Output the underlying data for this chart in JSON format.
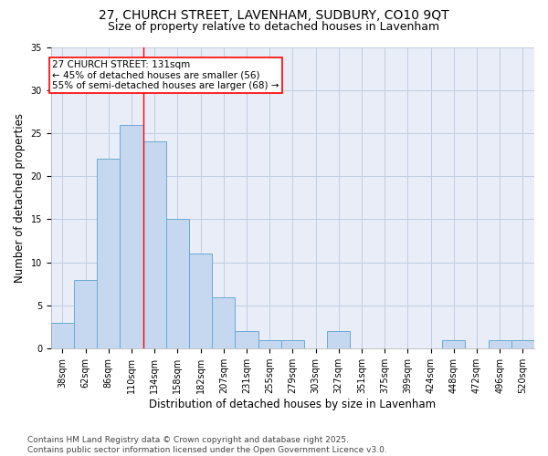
{
  "title_line1": "27, CHURCH STREET, LAVENHAM, SUDBURY, CO10 9QT",
  "title_line2": "Size of property relative to detached houses in Lavenham",
  "xlabel": "Distribution of detached houses by size in Lavenham",
  "ylabel": "Number of detached properties",
  "categories": [
    "38sqm",
    "62sqm",
    "86sqm",
    "110sqm",
    "134sqm",
    "158sqm",
    "182sqm",
    "207sqm",
    "231sqm",
    "255sqm",
    "279sqm",
    "303sqm",
    "327sqm",
    "351sqm",
    "375sqm",
    "399sqm",
    "424sqm",
    "448sqm",
    "472sqm",
    "496sqm",
    "520sqm"
  ],
  "values": [
    3,
    8,
    22,
    26,
    24,
    15,
    11,
    6,
    2,
    1,
    1,
    0,
    2,
    0,
    0,
    0,
    0,
    1,
    0,
    1,
    1
  ],
  "bar_color": "#c5d8f0",
  "bar_edge_color": "#6aaad4",
  "vline_x_index": 3.5,
  "vline_color": "red",
  "annotation_text": "27 CHURCH STREET: 131sqm\n← 45% of detached houses are smaller (56)\n55% of semi-detached houses are larger (68) →",
  "annotation_box_color": "white",
  "annotation_box_edge_color": "red",
  "ylim": [
    0,
    35
  ],
  "yticks": [
    0,
    5,
    10,
    15,
    20,
    25,
    30,
    35
  ],
  "footer_text": "Contains HM Land Registry data © Crown copyright and database right 2025.\nContains public sector information licensed under the Open Government Licence v3.0.",
  "background_color": "#ffffff",
  "plot_bg_color": "#e8edf8",
  "grid_color": "#c0cce0",
  "title_fontsize": 10,
  "subtitle_fontsize": 9,
  "tick_fontsize": 7,
  "label_fontsize": 8.5,
  "annotation_fontsize": 7.5,
  "footer_fontsize": 6.5
}
